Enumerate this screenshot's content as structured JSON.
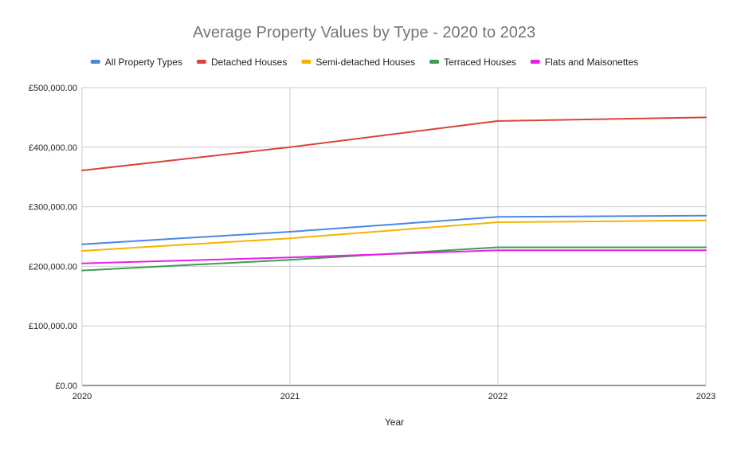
{
  "chart_data": {
    "type": "line",
    "title": "Average Property Values by Type - 2020 to 2023",
    "xlabel": "Year",
    "ylabel": "",
    "x": [
      "2020",
      "2021",
      "2022",
      "2023"
    ],
    "ylim": [
      0,
      500000
    ],
    "y_ticks": [
      0,
      100000,
      200000,
      300000,
      400000,
      500000
    ],
    "y_tick_labels": [
      "£0.00",
      "£100,000.00",
      "£200,000.00",
      "£300,000.00",
      "£400,000.00",
      "£500,000.00"
    ],
    "grid": true,
    "legend_position": "top",
    "series": [
      {
        "name": "All Property Types",
        "color": "#4a86e8",
        "values": [
          237000,
          258000,
          283000,
          285000
        ]
      },
      {
        "name": "Detached Houses",
        "color": "#db4437",
        "values": [
          361000,
          400000,
          444000,
          450000
        ]
      },
      {
        "name": "Semi-detached Houses",
        "color": "#f4b400",
        "values": [
          226000,
          247000,
          274000,
          277000
        ]
      },
      {
        "name": "Terraced Houses",
        "color": "#3e9c4f",
        "values": [
          193000,
          211000,
          232000,
          232000
        ]
      },
      {
        "name": "Flats and Maisonettes",
        "color": "#e820e8",
        "values": [
          205000,
          215000,
          227000,
          227000
        ]
      }
    ]
  }
}
